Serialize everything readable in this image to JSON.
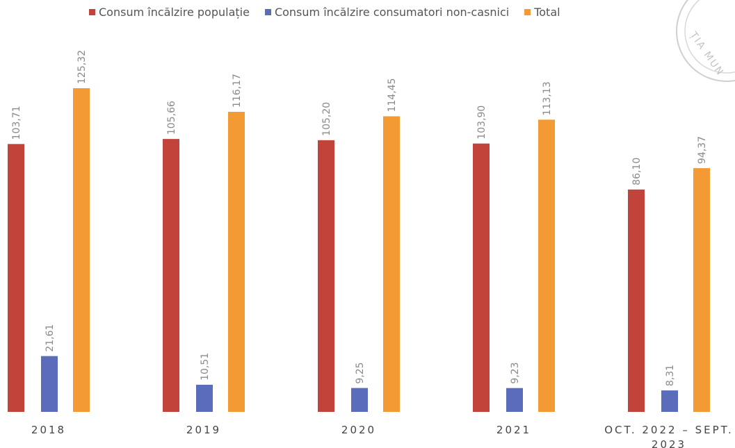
{
  "chart_data": {
    "type": "bar",
    "categories": [
      "2018",
      "2019",
      "2020",
      "2021",
      "OCT. 2022 – SEPT. 2023"
    ],
    "series": [
      {
        "name": "Consum încălzire populație",
        "color": "#c2433a",
        "values": [
          103.71,
          105.66,
          105.2,
          103.9,
          86.1
        ],
        "labels": [
          "103,71",
          "105,66",
          "105,20",
          "103,90",
          "86,10"
        ]
      },
      {
        "name": "Consum încălzire consumatori non-casnici",
        "color": "#5a6cba",
        "values": [
          21.61,
          10.51,
          9.25,
          9.23,
          8.31
        ],
        "labels": [
          "21,61",
          "10,51",
          "9,25",
          "9,23",
          "8,31"
        ]
      },
      {
        "name": "Total",
        "color": "#f39a35",
        "values": [
          125.32,
          116.17,
          114.45,
          113.13,
          94.37
        ],
        "labels": [
          "125,32",
          "116,17",
          "114,45",
          "113,13",
          "94,37"
        ]
      }
    ],
    "category_lines": [
      [
        "2018"
      ],
      [
        "2019"
      ],
      [
        "2020"
      ],
      [
        "2021"
      ],
      [
        "OCT. 2022 – SEPT.",
        "2023"
      ]
    ],
    "legend_position": "top",
    "grid": false,
    "ylim": [
      0,
      126
    ]
  },
  "stamp": {
    "text": "ȚIA MUN",
    "color": "#c8c8c8"
  }
}
